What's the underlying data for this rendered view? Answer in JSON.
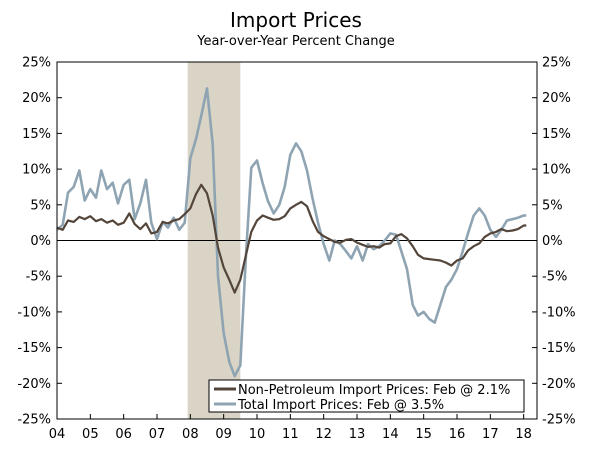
{
  "chart_data": {
    "type": "line",
    "title": "Import Prices",
    "subtitle": "Year-over-Year Percent Change",
    "ylim": [
      -25,
      25
    ],
    "y_ticks": [
      25,
      20,
      15,
      10,
      5,
      0,
      -5,
      -10,
      -15,
      -20,
      -25
    ],
    "y_tick_labels": [
      "25%",
      "20%",
      "15%",
      "10%",
      "5%",
      "0%",
      "-5%",
      "-10%",
      "-15%",
      "-20%",
      "-25%"
    ],
    "xlim": [
      2004.0,
      2018.4
    ],
    "x_ticks": [
      2004,
      2005,
      2006,
      2007,
      2008,
      2009,
      2010,
      2011,
      2012,
      2013,
      2014,
      2015,
      2016,
      2017,
      2018
    ],
    "x_tick_labels": [
      "04",
      "05",
      "06",
      "07",
      "08",
      "09",
      "10",
      "11",
      "12",
      "13",
      "14",
      "15",
      "16",
      "17",
      "18"
    ],
    "recession": {
      "start": 2007.92,
      "end": 2009.5,
      "color": "#d9d4c5"
    },
    "zero_line": true,
    "legend_position": "bottom-right",
    "series": [
      {
        "name": "Non-Petroleum Import Prices: Feb @ 2.1%",
        "color": "#54453a",
        "x": [
          2004.0,
          2004.17,
          2004.33,
          2004.5,
          2004.67,
          2004.83,
          2005.0,
          2005.17,
          2005.33,
          2005.5,
          2005.67,
          2005.83,
          2006.0,
          2006.17,
          2006.33,
          2006.5,
          2006.67,
          2006.83,
          2007.0,
          2007.17,
          2007.33,
          2007.5,
          2007.67,
          2007.83,
          2008.0,
          2008.17,
          2008.33,
          2008.5,
          2008.67,
          2008.83,
          2009.0,
          2009.17,
          2009.33,
          2009.5,
          2009.67,
          2009.83,
          2010.0,
          2010.17,
          2010.33,
          2010.5,
          2010.67,
          2010.83,
          2011.0,
          2011.17,
          2011.33,
          2011.5,
          2011.67,
          2011.83,
          2012.0,
          2012.17,
          2012.33,
          2012.5,
          2012.67,
          2012.83,
          2013.0,
          2013.17,
          2013.33,
          2013.5,
          2013.67,
          2013.83,
          2014.0,
          2014.17,
          2014.33,
          2014.5,
          2014.67,
          2014.83,
          2015.0,
          2015.17,
          2015.33,
          2015.5,
          2015.67,
          2015.83,
          2016.0,
          2016.17,
          2016.33,
          2016.5,
          2016.67,
          2016.83,
          2017.0,
          2017.17,
          2017.33,
          2017.5,
          2017.67,
          2017.83,
          2018.0,
          2018.08
        ],
        "values": [
          1.8,
          1.5,
          2.8,
          2.6,
          3.3,
          3.0,
          3.4,
          2.7,
          3.0,
          2.5,
          2.8,
          2.2,
          2.5,
          3.8,
          2.3,
          1.6,
          2.4,
          1.0,
          1.2,
          2.6,
          2.4,
          2.8,
          3.0,
          3.7,
          4.5,
          6.5,
          7.8,
          6.6,
          3.5,
          -1.0,
          -3.8,
          -5.5,
          -7.3,
          -5.5,
          -2.0,
          1.2,
          2.8,
          3.5,
          3.2,
          2.9,
          3.0,
          3.4,
          4.5,
          5.0,
          5.4,
          4.8,
          2.7,
          1.2,
          0.6,
          0.2,
          -0.2,
          -0.3,
          0.1,
          0.2,
          -0.3,
          -0.6,
          -0.9,
          -0.8,
          -1.0,
          -0.5,
          -0.4,
          0.6,
          0.9,
          0.3,
          -0.8,
          -2.0,
          -2.5,
          -2.6,
          -2.7,
          -2.8,
          -3.1,
          -3.5,
          -2.8,
          -2.5,
          -1.4,
          -0.8,
          -0.4,
          0.5,
          1.0,
          1.2,
          1.6,
          1.3,
          1.4,
          1.6,
          2.1,
          2.1
        ]
      },
      {
        "name": "Total Import Prices: Feb @ 3.5%",
        "color": "#8fa4b3",
        "x": [
          2004.0,
          2004.17,
          2004.33,
          2004.5,
          2004.67,
          2004.83,
          2005.0,
          2005.17,
          2005.33,
          2005.5,
          2005.67,
          2005.83,
          2006.0,
          2006.17,
          2006.33,
          2006.5,
          2006.67,
          2006.83,
          2007.0,
          2007.17,
          2007.33,
          2007.5,
          2007.67,
          2007.83,
          2008.0,
          2008.17,
          2008.33,
          2008.5,
          2008.67,
          2008.83,
          2009.0,
          2009.17,
          2009.33,
          2009.5,
          2009.67,
          2009.83,
          2010.0,
          2010.17,
          2010.33,
          2010.5,
          2010.67,
          2010.83,
          2011.0,
          2011.17,
          2011.33,
          2011.5,
          2011.67,
          2011.83,
          2012.0,
          2012.17,
          2012.33,
          2012.5,
          2012.67,
          2012.83,
          2013.0,
          2013.17,
          2013.33,
          2013.5,
          2013.67,
          2013.83,
          2014.0,
          2014.17,
          2014.33,
          2014.5,
          2014.67,
          2014.83,
          2015.0,
          2015.17,
          2015.33,
          2015.5,
          2015.67,
          2015.83,
          2016.0,
          2016.17,
          2016.33,
          2016.5,
          2016.67,
          2016.83,
          2017.0,
          2017.17,
          2017.33,
          2017.5,
          2017.67,
          2017.83,
          2018.0,
          2018.08
        ],
        "values": [
          1.5,
          2.2,
          6.7,
          7.5,
          9.8,
          5.6,
          7.2,
          6.0,
          9.8,
          7.2,
          8.1,
          5.2,
          7.8,
          8.5,
          3.0,
          5.2,
          8.5,
          2.5,
          0.2,
          2.6,
          1.8,
          3.2,
          1.5,
          2.5,
          11.5,
          14.2,
          17.5,
          21.3,
          13.5,
          -5.0,
          -13.0,
          -17.0,
          -19.0,
          -17.5,
          -2.0,
          10.2,
          11.2,
          8.0,
          5.5,
          3.8,
          5.0,
          7.5,
          12.0,
          13.6,
          12.5,
          9.8,
          5.8,
          2.5,
          -0.5,
          -2.8,
          0.0,
          -0.5,
          -1.5,
          -2.5,
          -0.8,
          -2.8,
          -0.5,
          -1.2,
          -0.8,
          0.0,
          1.0,
          0.8,
          -1.5,
          -4.0,
          -9.0,
          -10.5,
          -10.0,
          -11.0,
          -11.5,
          -9.0,
          -6.5,
          -5.5,
          -4.0,
          -1.5,
          1.0,
          3.5,
          4.5,
          3.5,
          1.5,
          0.5,
          1.5,
          2.8,
          3.0,
          3.2,
          3.5,
          3.5
        ]
      }
    ]
  }
}
